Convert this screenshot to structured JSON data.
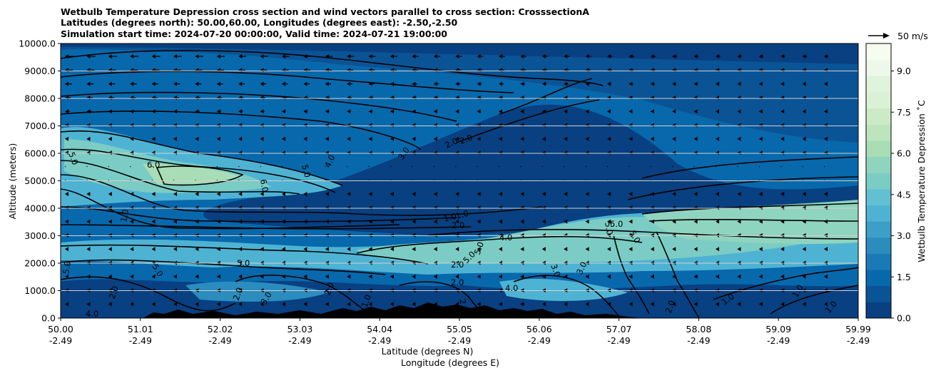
{
  "chart_data": {
    "type": "heatmap",
    "title_lines": [
      "Wetbulb Temperature Depression cross section and wind vectors parallel to cross section: CrosssectionA",
      "Latitudes (degrees north): 50.00,60.00, Longitudes (degrees east): -2.50,-2.50",
      "Simulation start time: 2024-07-20 00:00:00, Valid time: 2024-07-21 19:00:00"
    ],
    "ylabel": "Altitude (meters)",
    "xlabel_1": "Latitude (degrees N)",
    "xlabel_2": "Longitude (degrees E)",
    "ylim": [
      0,
      10000
    ],
    "yticks": [
      "0.0",
      "1000.0",
      "2000.0",
      "3000.0",
      "4000.0",
      "5000.0",
      "6000.0",
      "7000.0",
      "8000.0",
      "9000.0",
      "10000.0"
    ],
    "x_lat_ticks": [
      "50.00",
      "51.01",
      "52.02",
      "53.03",
      "54.04",
      "55.05",
      "56.06",
      "57.07",
      "58.08",
      "59.09",
      "59.99"
    ],
    "x_lon_ticks": [
      "-2.49",
      "-2.49",
      "-2.49",
      "-2.49",
      "-2.49",
      "-2.49",
      "-2.49",
      "-2.49",
      "-2.49",
      "-2.49",
      "-2.49"
    ],
    "grid": "horizontal",
    "colorbar": {
      "label": "Wetbulb Temperature Depression ˚C",
      "range": [
        0.0,
        10.0
      ],
      "ticks": [
        "0.0",
        "1.5",
        "3.0",
        "4.5",
        "6.0",
        "7.5",
        "9.0"
      ],
      "colors": [
        "#084081",
        "#0a5496",
        "#0868ac",
        "#1a7ab6",
        "#2b8cbe",
        "#3d9ec8",
        "#4eb3d3",
        "#63c0d2",
        "#7bccc4",
        "#8fd4be",
        "#a8ddb5",
        "#bde5bd",
        "#ccebc5",
        "#dbf1d5",
        "#e0f3db",
        "#eef8ea",
        "#f7fcf0"
      ]
    },
    "quiver_key": "50 m/s",
    "contour_labels": [
      "5.0",
      "6.0",
      "6.0",
      "5.0",
      "4.0",
      "3.0",
      "2.0",
      "2.0",
      "1.0",
      "1.0",
      "2.0",
      "4.0",
      "5.0",
      "5.0",
      "5.0",
      "1.0",
      "5.0",
      "5.0",
      "2.0",
      "1.0",
      "3.0",
      "4.0",
      "3.0",
      "2.0",
      "1.0",
      "2.0",
      "2.0",
      "1.0",
      "1.0",
      "2.0",
      "2.0",
      "3.0",
      "5.0",
      "5.0",
      "5.0",
      "2.0",
      "4.0"
    ]
  }
}
